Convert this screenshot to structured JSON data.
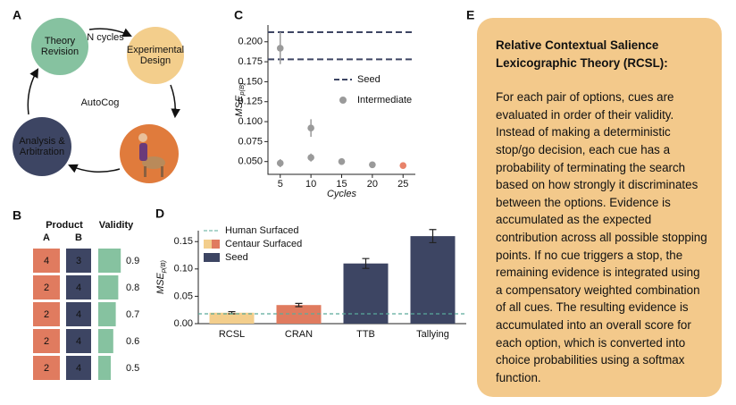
{
  "panel_labels": [
    "A",
    "B",
    "C",
    "D",
    "E"
  ],
  "cycle": {
    "center": "AutoCog",
    "loop_label": "N cycles",
    "nodes": [
      [
        "Theory",
        "Revision"
      ],
      [
        "Experimental",
        "Design"
      ],
      [
        "Analysis &",
        "Arbitration"
      ]
    ]
  },
  "table": {
    "headers": [
      "Product",
      "Validity"
    ],
    "columns": [
      "A",
      "B"
    ],
    "rows": [
      [
        4,
        3,
        0.9
      ],
      [
        2,
        4,
        0.8
      ],
      [
        2,
        4,
        0.7
      ],
      [
        2,
        4,
        0.6
      ],
      [
        2,
        4,
        0.5
      ]
    ]
  },
  "chart_data": [
    {
      "type": "scatter",
      "ylabel": "MSE",
      "ylabel_sub": "p(B)",
      "xlabel": "Cycles",
      "xlim": [
        3,
        27
      ],
      "ylim": [
        0.034,
        0.221
      ],
      "xticks": [
        5,
        10,
        15,
        20,
        25
      ],
      "yticks": [
        {
          "value": 0.05,
          "label": "0.050"
        },
        {
          "value": 0.075,
          "label": "0.075"
        },
        {
          "value": 0.1,
          "label": "0.100"
        },
        {
          "value": 0.125,
          "label": "0.125"
        },
        {
          "value": 0.15,
          "label": "0.150"
        },
        {
          "value": 0.175,
          "label": "0.175"
        },
        {
          "value": 0.2,
          "label": "0.200"
        }
      ],
      "series": [
        {
          "name": "Seed",
          "style": "dashed",
          "color": "#3d4563",
          "values": [
            0.212,
            0.178
          ]
        },
        {
          "name": "Intermediate",
          "color": "#9a9a9a",
          "x": [
            5,
            5,
            10,
            10,
            15,
            20
          ],
          "values": [
            0.192,
            0.048,
            0.092,
            0.055,
            0.05,
            0.046
          ],
          "errors": [
            0.02,
            0.005,
            0.011,
            0.005,
            0.004,
            0.002
          ]
        },
        {
          "color": "#e8836a",
          "x": [
            25
          ],
          "values": [
            0.045
          ],
          "errors": [
            0.003
          ]
        }
      ]
    },
    {
      "type": "bar",
      "ylabel": "MSE",
      "ylabel_sub": "p(B)",
      "categories": [
        "RCSL",
        "CRAN",
        "TTB",
        "Tallying"
      ],
      "values": [
        0.02,
        0.034,
        0.11,
        0.16
      ],
      "errors": [
        0.002,
        0.003,
        0.009,
        0.012
      ],
      "colors": [
        "#f3ce8c",
        "#e07b5f",
        "#3d4563",
        "#3d4563"
      ],
      "ylim": [
        0,
        0.17
      ],
      "yticks": [
        {
          "value": 0,
          "label": "0.00"
        },
        {
          "value": 0.05,
          "label": "0.05"
        },
        {
          "value": 0.1,
          "label": "0.10"
        },
        {
          "value": 0.15,
          "label": "0.15"
        }
      ],
      "reference": {
        "name": "Human Surfaced",
        "value": 0.018,
        "color": "#5aab9a"
      },
      "legend": [
        {
          "name": "Centaur Surfaced",
          "colors": [
            "#f3ce8c",
            "#e07b5f"
          ]
        },
        {
          "name": "Seed",
          "colors": [
            "#3d4563"
          ]
        }
      ]
    }
  ],
  "text_box": {
    "title": "Relative Contextual Salience Lexicographic Theory (RCSL):",
    "body": "For each pair of options, cues are evaluated in order of their validity. Instead of making a deterministic stop/go decision, each cue has a probability of terminating the search based on how strongly it discriminates between the options. Evidence is accumulated as the expected contribution across all possible stopping points. If no cue triggers a stop, the remaining evidence is integrated using a compensatory weighted combination of all cues. The resulting evidence is accumulated into an overall score for each option, which is converted into choice probabilities using a softmax function."
  }
}
